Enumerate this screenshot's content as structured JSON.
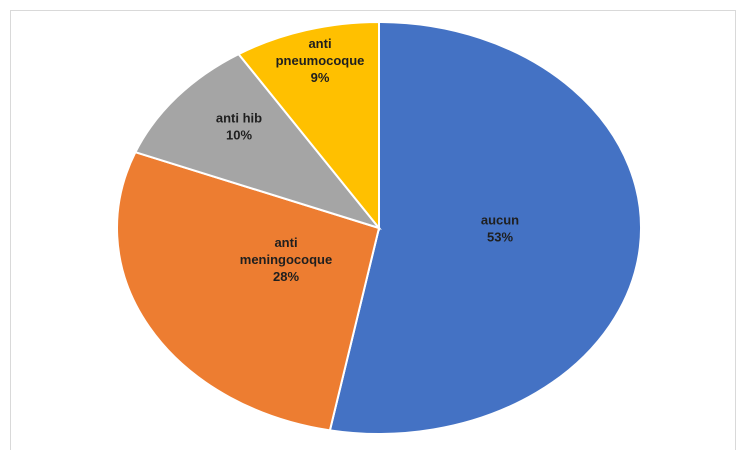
{
  "chart_data": {
    "type": "pie",
    "title": "",
    "slices": [
      {
        "name": "aucun",
        "label_lines": [
          "aucun"
        ],
        "pct_label": "53%",
        "value": 53,
        "color": "#4472C4",
        "text_color": "#1f1f1f"
      },
      {
        "name": "anti meningocoque",
        "label_lines": [
          "anti",
          "meningocoque"
        ],
        "pct_label": "28%",
        "value": 28,
        "color": "#ED7D31",
        "text_color": "#1f1f1f"
      },
      {
        "name": "anti hib",
        "label_lines": [
          "anti hib"
        ],
        "pct_label": "10%",
        "value": 10,
        "color": "#A5A5A5",
        "text_color": "#1f1f1f"
      },
      {
        "name": "anti pneumocoque",
        "label_lines": [
          "anti",
          "pneumocoque"
        ],
        "pct_label": "9%",
        "value": 9,
        "color": "#FFC000",
        "text_color": "#1f1f1f"
      }
    ],
    "start": "12 o'clock",
    "direction": "clockwise",
    "legend": "none",
    "border_color": "#ffffff"
  }
}
